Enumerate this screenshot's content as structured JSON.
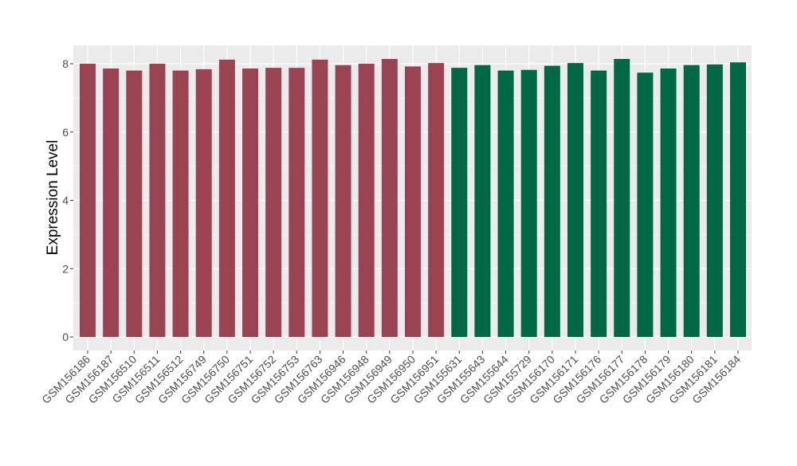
{
  "chart_data": {
    "type": "bar",
    "ylabel": "Expression Level",
    "xlabel": "",
    "title": "",
    "ylim": [
      0,
      8.45
    ],
    "yticks": [
      0,
      2,
      4,
      6,
      8
    ],
    "grid": true,
    "colors": {
      "panel_background": "#ebebeb",
      "grid_major": "#ffffff",
      "group_1": "#9a4452",
      "group_2": "#006845",
      "axis_text": "#4d4d4d",
      "tick": "#333333"
    },
    "categories": [
      "GSM156186",
      "GSM156187",
      "GSM156510",
      "GSM156511",
      "GSM156512",
      "GSM156749",
      "GSM156750",
      "GSM156751",
      "GSM156752",
      "GSM156753",
      "GSM156763",
      "GSM156946",
      "GSM156948",
      "GSM156949",
      "GSM156950",
      "GSM156951",
      "GSM155631",
      "GSM155643",
      "GSM155644",
      "GSM155729",
      "GSM156170",
      "GSM156171",
      "GSM156176",
      "GSM156177",
      "GSM156178",
      "GSM156179",
      "GSM156180",
      "GSM156181",
      "GSM156184"
    ],
    "values": [
      8.0,
      7.86,
      7.8,
      8.0,
      7.8,
      7.84,
      8.12,
      7.86,
      7.88,
      7.88,
      8.12,
      7.96,
      8.0,
      8.14,
      7.92,
      8.02,
      7.88,
      7.96,
      7.8,
      7.82,
      7.94,
      8.02,
      7.8,
      8.14,
      7.74,
      7.86,
      7.96,
      7.98,
      8.04
    ],
    "groups": [
      1,
      1,
      1,
      1,
      1,
      1,
      1,
      1,
      1,
      1,
      1,
      1,
      1,
      1,
      1,
      1,
      2,
      2,
      2,
      2,
      2,
      2,
      2,
      2,
      2,
      2,
      2,
      2,
      2
    ]
  }
}
